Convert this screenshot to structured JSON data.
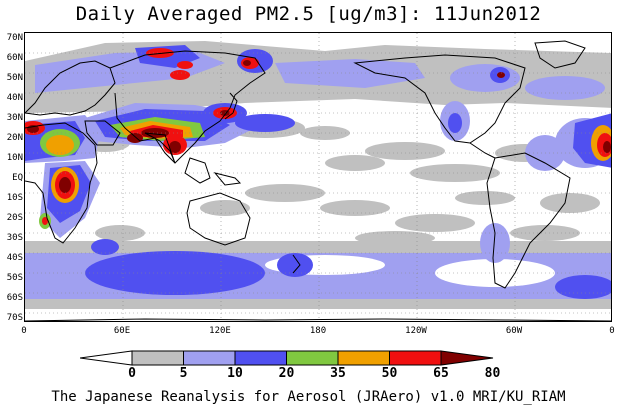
{
  "title": "Daily Averaged PM2.5 [ug/m3]: 11Jun2012",
  "credit": "The Japanese Reanalysis for Aerosol (JRAero) v1.0 MRI/KU_RIAM",
  "lat_labels": [
    "70N",
    "60N",
    "50N",
    "40N",
    "30N",
    "20N",
    "10N",
    "EQ",
    "10S",
    "20S",
    "30S",
    "40S",
    "50S",
    "60S",
    "70S"
  ],
  "lon_labels": [
    "0",
    "60E",
    "120E",
    "180",
    "120W",
    "60W",
    "0"
  ],
  "colorbar": {
    "levels": [
      "0",
      "5",
      "10",
      "20",
      "35",
      "50",
      "65",
      "80"
    ],
    "colors": [
      "#ffffff",
      "#c0c0c0",
      "#a0a0f0",
      "#5050f0",
      "#80c840",
      "#f0a000",
      "#f01010",
      "#800000"
    ]
  },
  "colors": {
    "white": "#ffffff",
    "gray": "#c0c0c0",
    "lavender": "#a0a0f0",
    "blue": "#5050f0",
    "green": "#80c840",
    "orange": "#f0a000",
    "red": "#f01010",
    "maroon": "#800000"
  }
}
